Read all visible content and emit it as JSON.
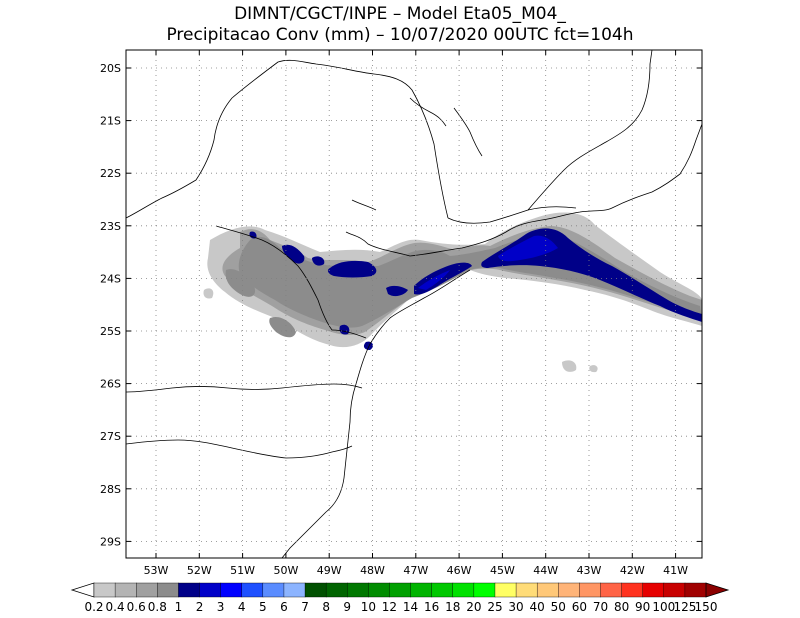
{
  "header": {
    "line1": "DIMNT/CGCT/INPE  –   Model Eta05_M04_",
    "line2": "Precipitacao Conv (mm) – 10/07/2020 00UTC fct=104h"
  },
  "axes": {
    "lat_labels": [
      "20S",
      "21S",
      "22S",
      "23S",
      "24S",
      "25S",
      "26S",
      "27S",
      "28S",
      "29S"
    ],
    "lon_labels": [
      "53W",
      "52W",
      "51W",
      "50W",
      "49W",
      "48W",
      "47W",
      "46W",
      "45W",
      "44W",
      "43W",
      "42W",
      "41W"
    ]
  },
  "colorbar": {
    "labels": [
      "0.2",
      "0.4",
      "0.6",
      "0.8",
      "1",
      "2",
      "3",
      "4",
      "5",
      "6",
      "7",
      "8",
      "9",
      "10",
      "12",
      "14",
      "16",
      "18",
      "20",
      "25",
      "30",
      "40",
      "50",
      "60",
      "70",
      "80",
      "90",
      "100",
      "125",
      "150"
    ],
    "colors": [
      "#c8c8c8",
      "#b4b4b4",
      "#a0a0a0",
      "#8c8c8c",
      "#000088",
      "#0000c8",
      "#0000ff",
      "#1e50ff",
      "#5a8cff",
      "#8cb4ff",
      "#005000",
      "#006400",
      "#007800",
      "#008c00",
      "#00a000",
      "#00b400",
      "#00c800",
      "#00e100",
      "#00ff00",
      "#ffff64",
      "#ffdc78",
      "#ffc878",
      "#ffb478",
      "#ff9664",
      "#ff6446",
      "#ff321e",
      "#e60000",
      "#c80000",
      "#a00000"
    ]
  },
  "colors": {
    "light_gray": "#c8c8c8",
    "mid_gray": "#a0a0a0",
    "dark_gray": "#8c8c8c",
    "navy": "#000088",
    "blue": "#0000c8"
  }
}
